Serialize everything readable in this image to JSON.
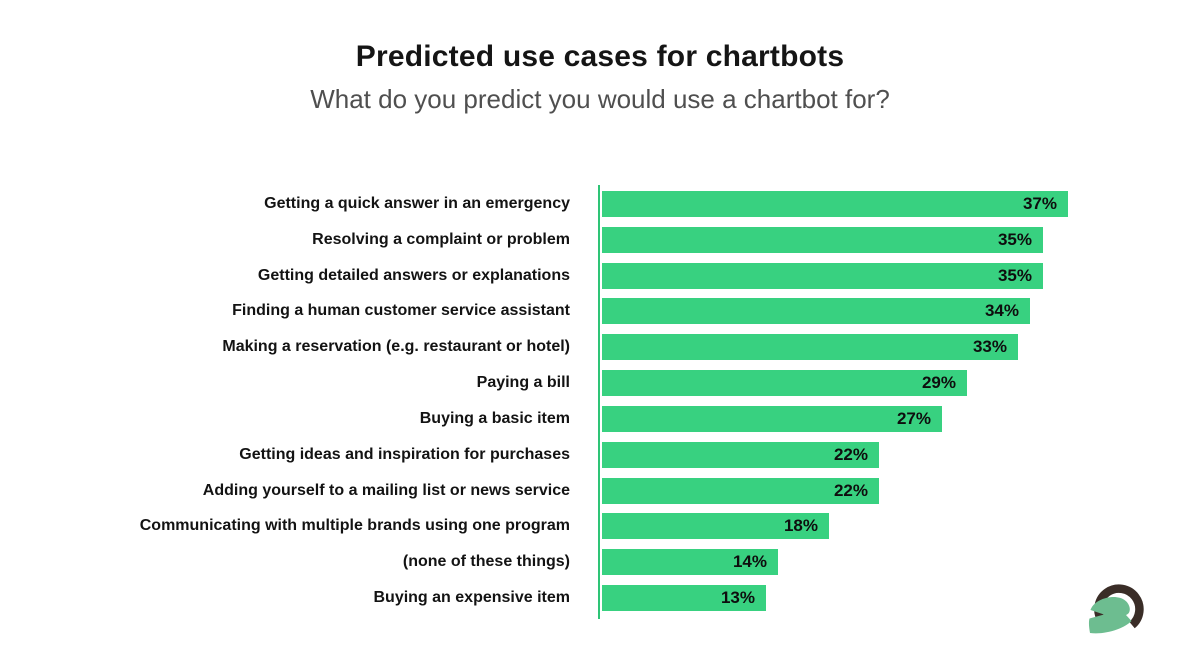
{
  "header": {
    "title": "Predicted use cases for chartbots",
    "subtitle": "What do you predict you would use a chartbot for?"
  },
  "chart_data": {
    "type": "bar",
    "orientation": "horizontal",
    "title": "Predicted use cases for chartbots",
    "subtitle": "What do you predict you would use a chartbot for?",
    "categories": [
      "Getting a quick answer in an emergency",
      "Resolving a complaint or problem",
      "Getting detailed answers or explanations",
      "Finding a human customer service assistant",
      "Making a reservation (e.g. restaurant or hotel)",
      "Paying a bill",
      "Buying a basic item",
      "Getting ideas and inspiration for purchases",
      "Adding yourself to a mailing list or news service",
      "Communicating with multiple brands using one program",
      "(none of these things)",
      "Buying an expensive item"
    ],
    "values": [
      37,
      35,
      35,
      34,
      33,
      29,
      27,
      22,
      22,
      18,
      14,
      13
    ],
    "value_suffix": "%",
    "xlabel": "",
    "ylabel": "",
    "xlim": [
      0,
      37
    ],
    "grid": false,
    "legend": false,
    "value_labels_position": "inside-end",
    "bar_color": "#38d180",
    "axis_color": "#2ec476",
    "value_label_color": "#0e0e0e"
  },
  "logo": {
    "name": "spartan-helmet-logo",
    "helmet_color": "#6dbd90",
    "crest_color": "#3a2d27"
  },
  "colors": {
    "background": "#ffffff",
    "title": "#151515",
    "subtitle": "#4f4f4f",
    "category_label": "#131313"
  }
}
